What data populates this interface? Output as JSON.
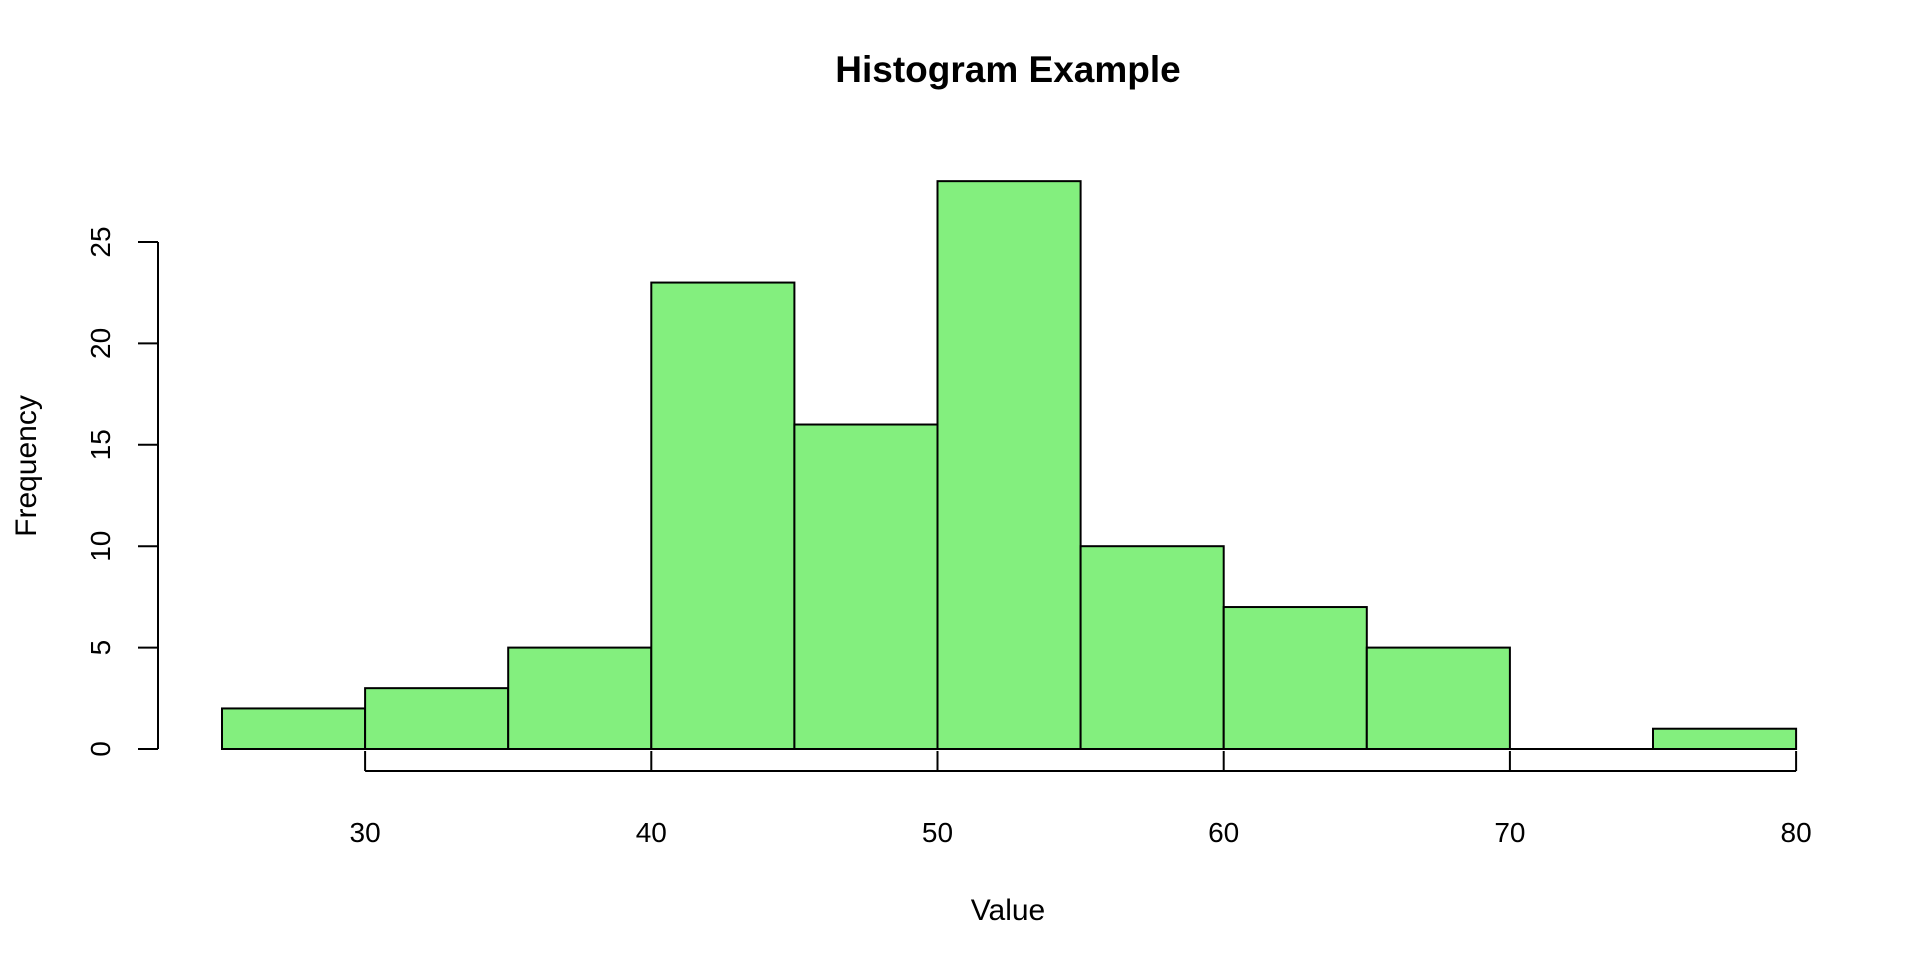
{
  "chart_data": {
    "type": "bar",
    "title": "Histogram Example",
    "xlabel": "Value",
    "ylabel": "Frequency",
    "bins": [
      {
        "from": 25,
        "to": 30,
        "count": 2
      },
      {
        "from": 30,
        "to": 35,
        "count": 3
      },
      {
        "from": 35,
        "to": 40,
        "count": 5
      },
      {
        "from": 40,
        "to": 45,
        "count": 23
      },
      {
        "from": 45,
        "to": 50,
        "count": 16
      },
      {
        "from": 50,
        "to": 55,
        "count": 28
      },
      {
        "from": 55,
        "to": 60,
        "count": 10
      },
      {
        "from": 60,
        "to": 65,
        "count": 7
      },
      {
        "from": 65,
        "to": 70,
        "count": 5
      },
      {
        "from": 70,
        "to": 75,
        "count": 0
      },
      {
        "from": 75,
        "to": 80,
        "count": 1
      }
    ],
    "x_ticks": [
      30,
      40,
      50,
      60,
      70,
      80
    ],
    "y_ticks": [
      0,
      5,
      10,
      15,
      20,
      25
    ],
    "xlim": [
      25,
      80
    ],
    "ylim": [
      0,
      28
    ],
    "bar_color": "#83ef7e",
    "grid": false,
    "legend": "none"
  }
}
